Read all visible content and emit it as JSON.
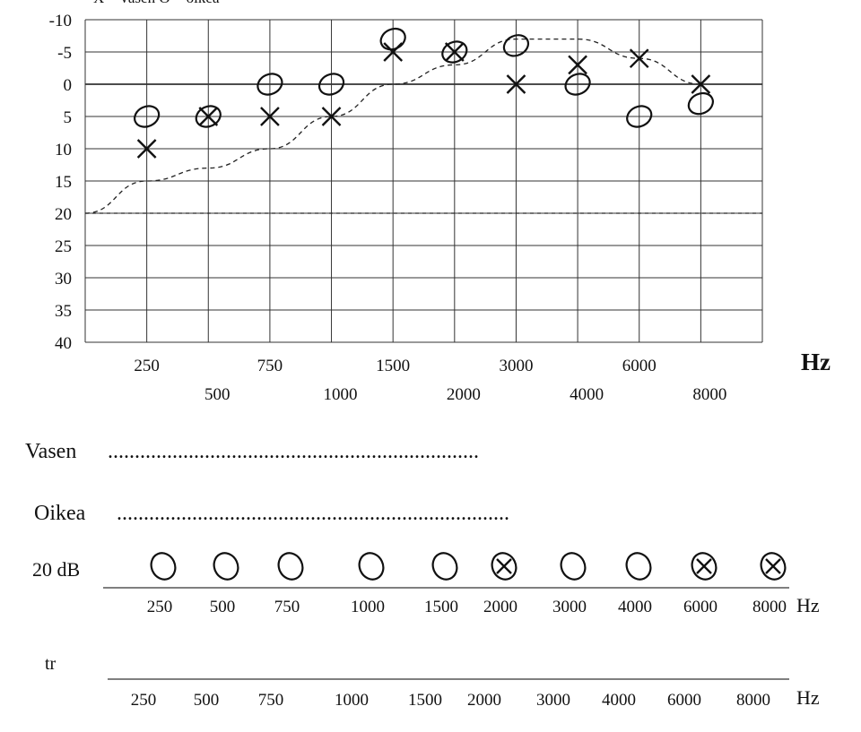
{
  "legend_text": "X = vasen   O = oikea",
  "hz_label": "Hz",
  "chart_data": {
    "type": "scatter",
    "title": "",
    "ylabel": "",
    "xlabel": "Hz",
    "y_inverted": true,
    "ylim": [
      -10,
      40
    ],
    "y_ticks": [
      "-10",
      "-5",
      "0",
      "5",
      "10",
      "15",
      "20",
      "25",
      "30",
      "35",
      "40"
    ],
    "x_ticks_top": [
      "250",
      "750",
      "1500",
      "3000",
      "6000"
    ],
    "x_ticks_bottom": [
      "500",
      "1000",
      "2000",
      "4000",
      "8000"
    ],
    "x_categories": [
      250,
      500,
      750,
      1000,
      1500,
      2000,
      3000,
      4000,
      6000,
      8000
    ],
    "grid": true,
    "legend": "top-left",
    "series": [
      {
        "name": "vasen",
        "marker": "x",
        "points": [
          {
            "x": 250,
            "y": 10
          },
          {
            "x": 500,
            "y": 5
          },
          {
            "x": 750,
            "y": 5
          },
          {
            "x": 1000,
            "y": 5
          },
          {
            "x": 1500,
            "y": -5
          },
          {
            "x": 2000,
            "y": -5
          },
          {
            "x": 3000,
            "y": 0
          },
          {
            "x": 4000,
            "y": -3
          },
          {
            "x": 6000,
            "y": -4
          },
          {
            "x": 8000,
            "y": 0
          }
        ]
      },
      {
        "name": "oikea",
        "marker": "o",
        "points": [
          {
            "x": 250,
            "y": 5
          },
          {
            "x": 500,
            "y": 5
          },
          {
            "x": 750,
            "y": 0
          },
          {
            "x": 1000,
            "y": 0
          },
          {
            "x": 1500,
            "y": -7
          },
          {
            "x": 2000,
            "y": -5
          },
          {
            "x": 3000,
            "y": -6
          },
          {
            "x": 4000,
            "y": 0
          },
          {
            "x": 6000,
            "y": 5
          },
          {
            "x": 8000,
            "y": 3
          }
        ]
      }
    ],
    "reference_curve": [
      {
        "x": 250,
        "y": 15
      },
      {
        "x": 500,
        "y": 13
      },
      {
        "x": 750,
        "y": 10
      },
      {
        "x": 1000,
        "y": 5
      },
      {
        "x": 1500,
        "y": 0
      },
      {
        "x": 2000,
        "y": -3
      },
      {
        "x": 3000,
        "y": -7
      },
      {
        "x": 4000,
        "y": -7
      },
      {
        "x": 6000,
        "y": -4
      },
      {
        "x": 8000,
        "y": 0
      }
    ],
    "reference_curve_start_y": 20,
    "reference_line_y": 20
  },
  "vasen_label": "Vasen",
  "vasen_dots": ".....................................................................",
  "oikea_label": "Oikea",
  "oikea_dots": ".........................................................................",
  "screen_label": "20 dB",
  "screen_results": [
    {
      "freq": "250",
      "mark": "o"
    },
    {
      "freq": "500",
      "mark": "o"
    },
    {
      "freq": "750",
      "mark": "o"
    },
    {
      "freq": "1000",
      "mark": "o"
    },
    {
      "freq": "1500",
      "mark": "o"
    },
    {
      "freq": "2000",
      "mark": "ox"
    },
    {
      "freq": "3000",
      "mark": "o"
    },
    {
      "freq": "4000",
      "mark": "o"
    },
    {
      "freq": "6000",
      "mark": "ox"
    },
    {
      "freq": "8000",
      "mark": "ox"
    }
  ],
  "tr_label": "tr",
  "tr_freqs": [
    "250",
    "500",
    "750",
    "1000",
    "1500",
    "2000",
    "3000",
    "4000",
    "6000",
    "8000"
  ],
  "screen_hz": "Hz",
  "tr_hz": "Hz"
}
